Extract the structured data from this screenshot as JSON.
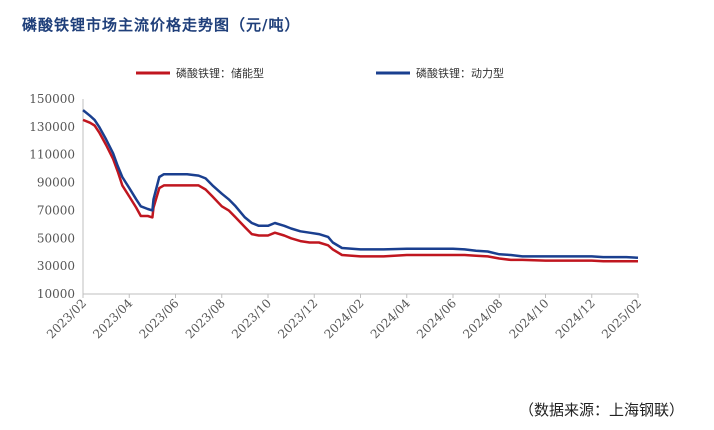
{
  "chart_data": {
    "type": "line",
    "title": "磷酸铁锂市场主流价格走势图（元/吨）",
    "source": "（数据来源：上海钢联）",
    "xlabel": "",
    "ylabel": "",
    "ylim": [
      10000,
      150000
    ],
    "yticks": [
      10000,
      30000,
      50000,
      70000,
      90000,
      110000,
      130000,
      150000
    ],
    "xlim": [
      0,
      24
    ],
    "xticks": [
      {
        "pos": 0,
        "label": "2023/02"
      },
      {
        "pos": 2,
        "label": "2023/04"
      },
      {
        "pos": 4,
        "label": "2023/06"
      },
      {
        "pos": 6,
        "label": "2023/08"
      },
      {
        "pos": 8,
        "label": "2023/10"
      },
      {
        "pos": 10,
        "label": "2023/12"
      },
      {
        "pos": 12,
        "label": "2024/02"
      },
      {
        "pos": 14,
        "label": "2024/04"
      },
      {
        "pos": 16,
        "label": "2024/06"
      },
      {
        "pos": 18,
        "label": "2024/08"
      },
      {
        "pos": 20,
        "label": "2024/10"
      },
      {
        "pos": 22,
        "label": "2024/12"
      },
      {
        "pos": 24,
        "label": "2025/02"
      }
    ],
    "legend_position": "top",
    "series": [
      {
        "name": "磷酸铁锂：储能型",
        "color": "#c0161f",
        "x": [
          0,
          0.3,
          0.5,
          0.7,
          1.0,
          1.3,
          1.5,
          1.7,
          2.0,
          2.3,
          2.5,
          2.8,
          3.0,
          3.05,
          3.3,
          3.5,
          4.0,
          4.5,
          5.0,
          5.3,
          5.6,
          6.0,
          6.3,
          6.6,
          7.0,
          7.3,
          7.6,
          8.0,
          8.3,
          8.7,
          9.0,
          9.4,
          9.8,
          10.2,
          10.6,
          10.8,
          11.2,
          12.0,
          12.6,
          13.0,
          14.0,
          15.0,
          16.0,
          16.5,
          17.0,
          17.5,
          18.0,
          18.5,
          19.0,
          20.0,
          21.0,
          22.0,
          22.5,
          23.0,
          23.5,
          24.0
        ],
        "values": [
          135000,
          133000,
          131000,
          126000,
          117000,
          107000,
          98000,
          88000,
          80000,
          72000,
          66000,
          66000,
          65000,
          72000,
          86000,
          88000,
          88000,
          88000,
          88000,
          85000,
          80000,
          73000,
          70000,
          65000,
          58000,
          53000,
          52000,
          52000,
          54000,
          52000,
          50000,
          48000,
          47000,
          47000,
          45000,
          42000,
          38000,
          37000,
          37000,
          37000,
          38000,
          38000,
          38000,
          38000,
          37500,
          37000,
          35500,
          34500,
          34500,
          34000,
          34000,
          34000,
          33500,
          33500,
          33500,
          33500
        ]
      },
      {
        "name": "磷酸铁锂：动力型",
        "color": "#1a3f8f",
        "x": [
          0,
          0.3,
          0.5,
          0.7,
          1.0,
          1.3,
          1.5,
          1.7,
          2.0,
          2.3,
          2.5,
          2.8,
          3.0,
          3.05,
          3.3,
          3.5,
          4.0,
          4.5,
          5.0,
          5.3,
          5.6,
          6.0,
          6.3,
          6.6,
          7.0,
          7.3,
          7.6,
          8.0,
          8.3,
          8.7,
          9.0,
          9.4,
          9.8,
          10.2,
          10.6,
          10.8,
          11.2,
          12.0,
          12.6,
          13.0,
          14.0,
          15.0,
          16.0,
          16.5,
          17.0,
          17.5,
          18.0,
          18.5,
          19.0,
          20.0,
          21.0,
          22.0,
          22.5,
          23.0,
          23.5,
          24.0
        ],
        "values": [
          142000,
          138000,
          135000,
          130000,
          121000,
          111000,
          102000,
          94000,
          86000,
          78000,
          73000,
          71000,
          70000,
          78000,
          94000,
          96000,
          96000,
          96000,
          95000,
          93000,
          88000,
          82000,
          78000,
          73000,
          65000,
          61000,
          59000,
          59000,
          61000,
          59000,
          57000,
          55000,
          54000,
          53000,
          51000,
          47000,
          43000,
          42000,
          42000,
          42000,
          42500,
          42500,
          42500,
          42000,
          41000,
          40500,
          38500,
          38000,
          37000,
          37000,
          37000,
          37000,
          36500,
          36500,
          36500,
          36000
        ]
      }
    ]
  }
}
